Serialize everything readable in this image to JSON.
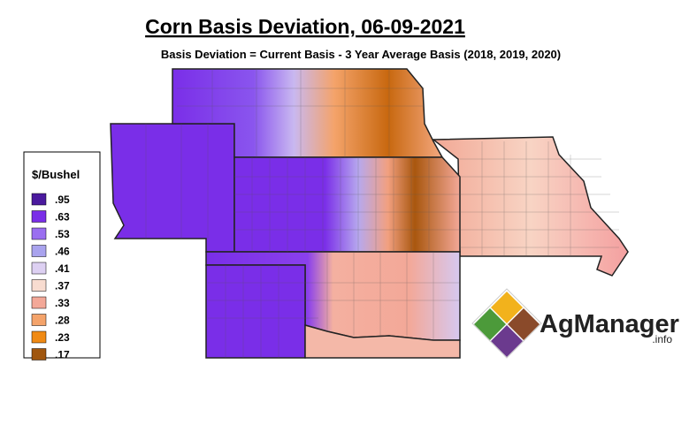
{
  "header": {
    "title": "Corn Basis Deviation, 06-09-2021",
    "subtitle": "Basis Deviation = Current Basis - 3 Year Average Basis (2018, 2019, 2020)"
  },
  "legend": {
    "title": "$/Bushel",
    "items": [
      {
        "label": ".95",
        "color": "#4b1a9e"
      },
      {
        "label": ".63",
        "color": "#7a2ee8"
      },
      {
        "label": ".53",
        "color": "#9a6ef0"
      },
      {
        "label": ".46",
        "color": "#a9a3ee"
      },
      {
        "label": ".41",
        "color": "#ddd0f2"
      },
      {
        "label": ".37",
        "color": "#f8dcd0"
      },
      {
        "label": ".33",
        "color": "#f3a898"
      },
      {
        "label": ".28",
        "color": "#f4a36a"
      },
      {
        "label": ".23",
        "color": "#f08a14"
      },
      {
        "label": ".17",
        "color": "#a0560e"
      }
    ]
  },
  "logo": {
    "name": "AgManager",
    "suffix": ".info"
  }
}
